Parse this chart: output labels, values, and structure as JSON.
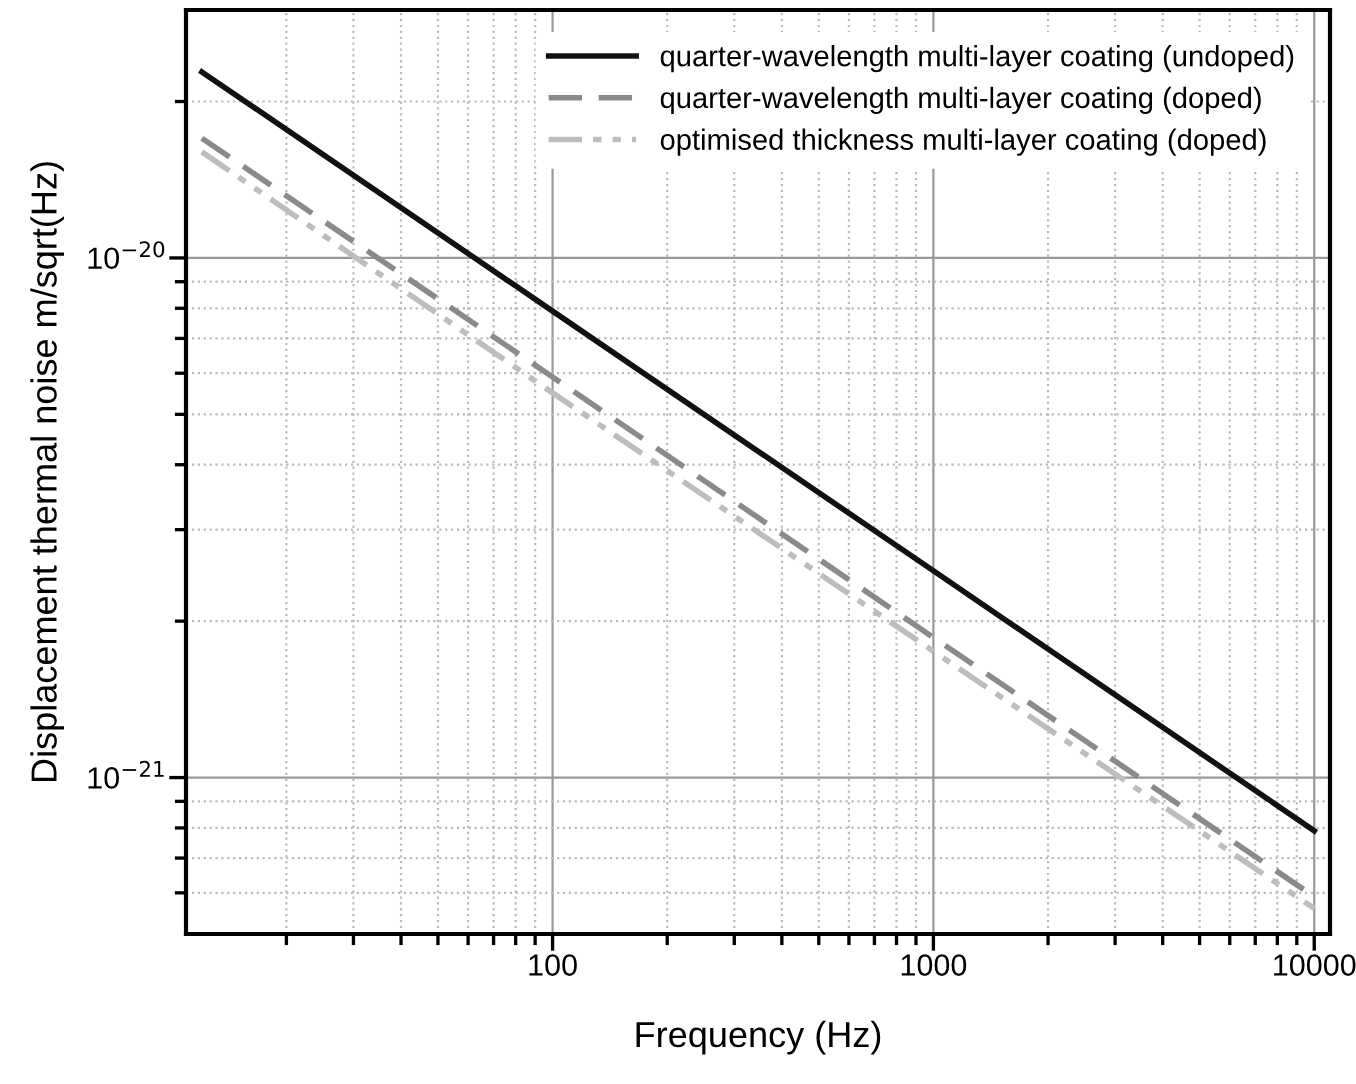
{
  "chart_data": {
    "type": "line",
    "xlabel": "Frequency (Hz)",
    "ylabel": "Displacement thermal noise m/sqrt(Hz)",
    "log": "xy",
    "grid": true,
    "legend": "top right",
    "xlim": [
      10.9,
      11000
    ],
    "ylim": [
      5e-22,
      3e-20
    ],
    "xticks": [
      {
        "value": 20,
        "label": null
      },
      {
        "value": 30,
        "label": null
      },
      {
        "value": 40,
        "label": null
      },
      {
        "value": 50,
        "label": null
      },
      {
        "value": 60,
        "label": null
      },
      {
        "value": 70,
        "label": null
      },
      {
        "value": 80,
        "label": null
      },
      {
        "value": 90,
        "label": null
      },
      100,
      {
        "value": 200,
        "label": null
      },
      {
        "value": 300,
        "label": null
      },
      {
        "value": 400,
        "label": null
      },
      {
        "value": 500,
        "label": null
      },
      {
        "value": 600,
        "label": null
      },
      {
        "value": 700,
        "label": null
      },
      {
        "value": 800,
        "label": null
      },
      {
        "value": 900,
        "label": null
      },
      1000,
      {
        "value": 2000,
        "label": null
      },
      {
        "value": 3000,
        "label": null
      },
      {
        "value": 4000,
        "label": null
      },
      {
        "value": 5000,
        "label": null
      },
      {
        "value": 6000,
        "label": null
      },
      {
        "value": 7000,
        "label": null
      },
      {
        "value": 8000,
        "label": null
      },
      {
        "value": 9000,
        "label": null
      },
      10000
    ],
    "yticks": [
      {
        "value": 6e-22,
        "label": null
      },
      {
        "value": 7e-22,
        "label": null
      },
      {
        "value": 8e-22,
        "label": null
      },
      {
        "value": 9e-22,
        "label": null
      },
      {
        "value": 1e-21,
        "label": "10$^{−21}$"
      },
      {
        "value": 2e-21,
        "label": null
      },
      {
        "value": 3e-21,
        "label": null
      },
      {
        "value": 4e-21,
        "label": null
      },
      {
        "value": 5e-21,
        "label": null
      },
      {
        "value": 6e-21,
        "label": null
      },
      {
        "value": 7e-21,
        "label": null
      },
      {
        "value": 8e-21,
        "label": null
      },
      {
        "value": 9e-21,
        "label": null
      },
      {
        "value": 1e-20,
        "label": "10$^{−20}$"
      },
      {
        "value": 2e-20,
        "label": null
      }
    ],
    "series": [
      {
        "name": "quarter-wavelength multi-layer coating (undoped)",
        "color": "#111111",
        "line_style": "solid",
        "x": [
          12,
          100,
          1000,
          10000
        ],
        "values": [
          2.28e-20,
          7.9e-21,
          2.5e-21,
          7.9e-22
        ]
      },
      {
        "name": "quarter-wavelength multi-layer coating (doped)",
        "color": "#8a8a8a",
        "line_style": "dashed",
        "x": [
          12,
          100,
          1000,
          10000
        ],
        "values": [
          1.7e-20,
          5.9e-21,
          1.86e-21,
          5.9e-22
        ]
      },
      {
        "name": "optimised thickness multi-layer coating (doped)",
        "color": "#bdbdbd",
        "line_style": "dashdot",
        "x": [
          12,
          100,
          1000,
          10000
        ],
        "values": [
          1.6e-20,
          5.5e-21,
          1.75e-21,
          5.6e-22
        ]
      }
    ]
  }
}
